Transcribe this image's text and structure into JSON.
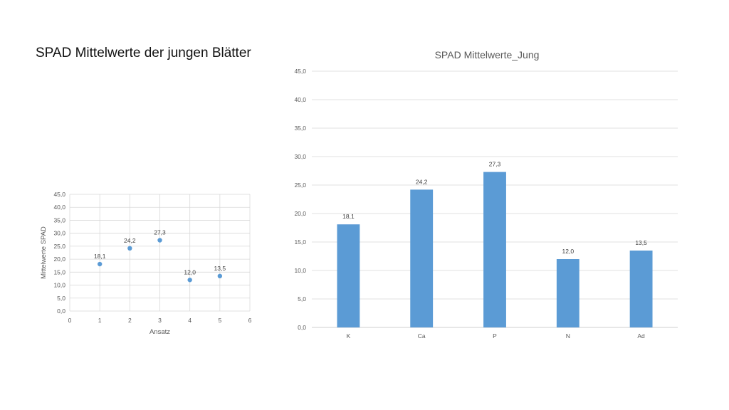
{
  "slide": {
    "title": "SPAD Mittelwerte der jungen Blätter"
  },
  "chart_data": [
    {
      "type": "scatter",
      "title": "",
      "xlabel": "Ansatz",
      "ylabel": "Mittelwerte SPAD",
      "xlim": [
        0,
        6
      ],
      "ylim": [
        0,
        45
      ],
      "x_ticks": [
        "0",
        "1",
        "2",
        "3",
        "4",
        "5",
        "6"
      ],
      "y_ticks": [
        "0,0",
        "5,0",
        "10,0",
        "15,0",
        "20,0",
        "25,0",
        "30,0",
        "35,0",
        "40,0",
        "45,0"
      ],
      "grid": true,
      "legend": "none",
      "color": "#5B9BD5",
      "points": [
        {
          "x": 1,
          "y": 18.1,
          "label": "18,1"
        },
        {
          "x": 2,
          "y": 24.2,
          "label": "24,2"
        },
        {
          "x": 3,
          "y": 27.3,
          "label": "27,3"
        },
        {
          "x": 4,
          "y": 12.0,
          "label": "12,0"
        },
        {
          "x": 5,
          "y": 13.5,
          "label": "13,5"
        }
      ]
    },
    {
      "type": "bar",
      "title": "SPAD Mittelwerte_Jung",
      "xlabel": "",
      "ylabel": "",
      "ylim": [
        0,
        45
      ],
      "y_ticks": [
        "0,0",
        "5,0",
        "10,0",
        "15,0",
        "20,0",
        "25,0",
        "30,0",
        "35,0",
        "40,0",
        "45,0"
      ],
      "grid": true,
      "legend": "none",
      "color": "#5B9BD5",
      "categories": [
        "K",
        "Ca",
        "P",
        "N",
        "Ad"
      ],
      "values": [
        18.1,
        24.2,
        27.3,
        12.0,
        13.5
      ],
      "labels": [
        "18,1",
        "24,2",
        "27,3",
        "12,0",
        "13,5"
      ]
    }
  ]
}
